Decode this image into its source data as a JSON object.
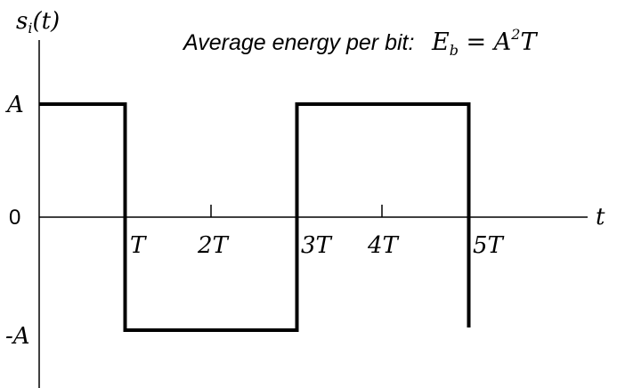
{
  "y_axis_label": {
    "s": "s",
    "sub": "i",
    "rest": "(t)"
  },
  "x_axis_label": "t",
  "caption": {
    "text": "Average energy per bit:",
    "formula": {
      "E": "E",
      "sub": "b",
      "eq": " = A",
      "sup": "2",
      "tail": "T"
    }
  },
  "y_tick_labels": {
    "A": "A",
    "zero": "0",
    "negA": "-A"
  },
  "x_tick_labels": [
    "T",
    "2T",
    "3T",
    "4T",
    "5T"
  ],
  "colors": {
    "line": "#000000",
    "axis": "#000000",
    "background": "#ffffff"
  },
  "waveform": {
    "units": {
      "x": "T",
      "y": "A"
    },
    "points": [
      [
        0,
        1
      ],
      [
        1,
        1
      ],
      [
        1,
        -1
      ],
      [
        3,
        -1
      ],
      [
        3,
        1
      ],
      [
        5,
        1
      ],
      [
        5,
        -1
      ]
    ]
  }
}
